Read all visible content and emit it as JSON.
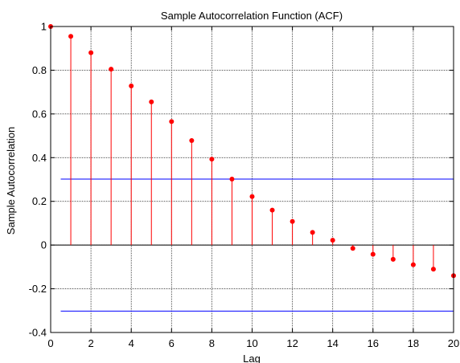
{
  "chart_data": {
    "type": "stem",
    "title": "Sample Autocorrelation Function (ACF)",
    "xlabel": "Lag",
    "ylabel": "Sample Autocorrelation",
    "xlim": [
      0,
      20
    ],
    "ylim": [
      -0.4,
      1
    ],
    "xticks": [
      "0",
      "2",
      "4",
      "6",
      "8",
      "10",
      "12",
      "14",
      "16",
      "18",
      "20"
    ],
    "yticks": [
      "-0.4",
      "-0.2",
      "0",
      "0.2",
      "0.4",
      "0.6",
      "0.8",
      "1"
    ],
    "grid": true,
    "series": [
      {
        "x": [
          0,
          1,
          2,
          3,
          4,
          5,
          6,
          7,
          8,
          9,
          10,
          11,
          12,
          13,
          14,
          15,
          16,
          17,
          18,
          19,
          20
        ],
        "values": [
          1.0,
          0.955,
          0.88,
          0.805,
          0.728,
          0.655,
          0.565,
          0.478,
          0.393,
          0.302,
          0.222,
          0.16,
          0.108,
          0.058,
          0.022,
          -0.015,
          -0.042,
          -0.065,
          -0.09,
          -0.11,
          -0.14
        ],
        "color": "#ff0000"
      }
    ],
    "confidence_bounds": [
      0.302,
      -0.302
    ],
    "bounds_color": "#0000ff"
  }
}
